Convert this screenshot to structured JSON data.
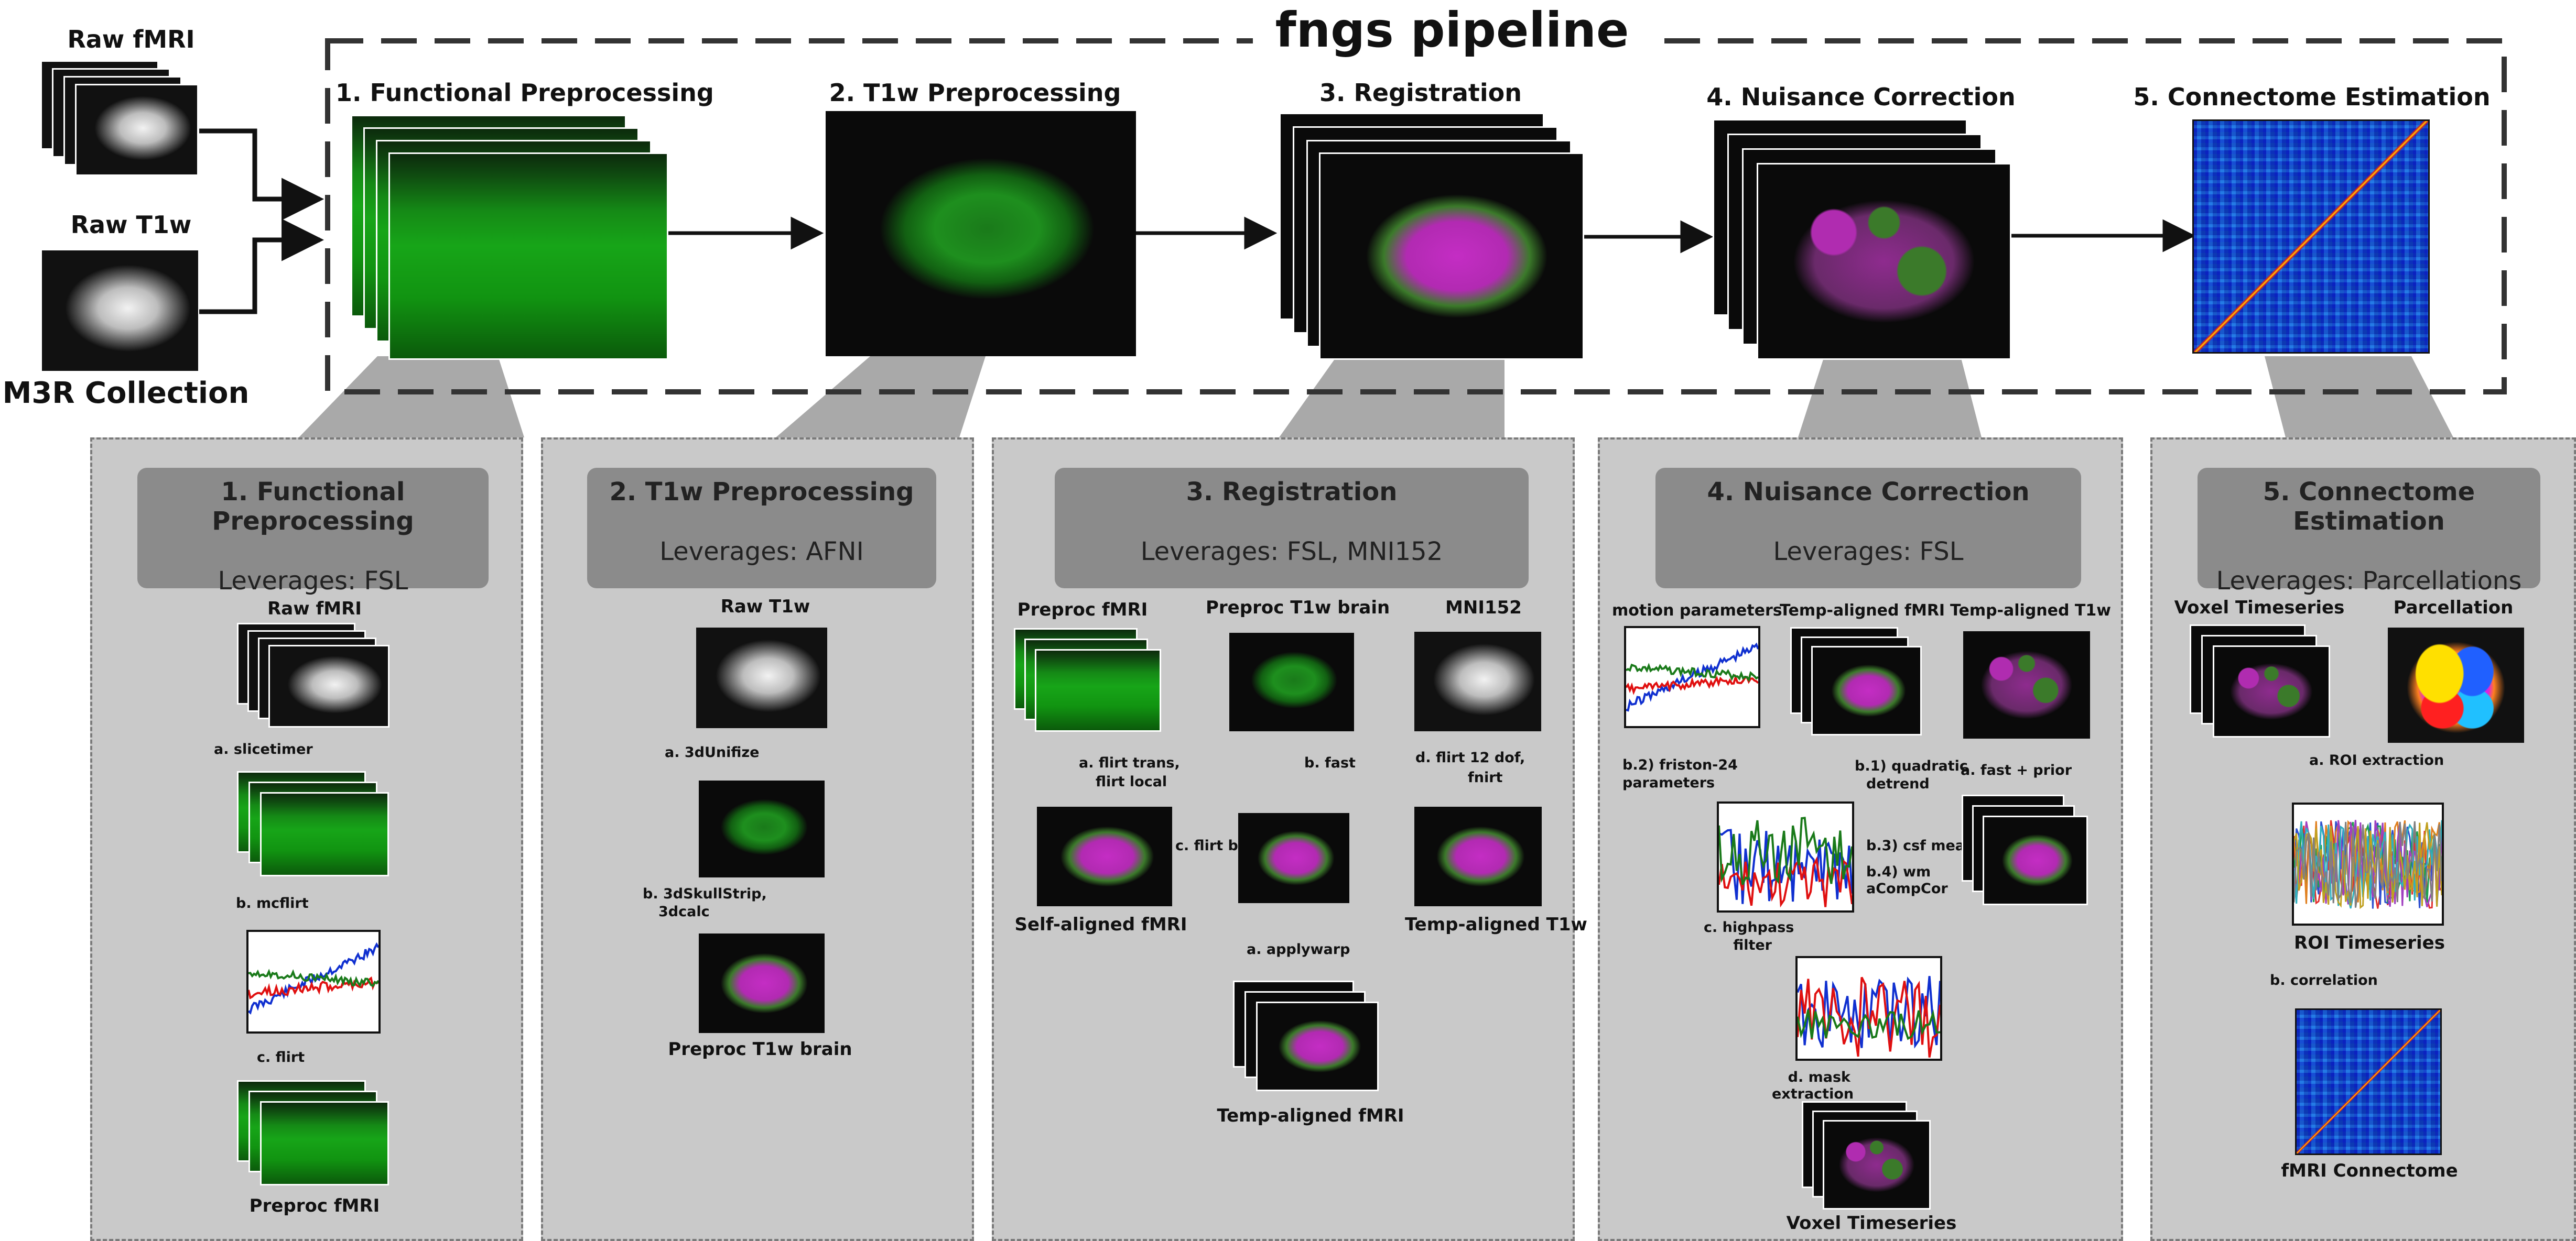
{
  "title": "fngs pipeline",
  "inputs": {
    "raw_fmri": "Raw fMRI",
    "raw_t1w": "Raw T1w",
    "collection": "M3R Collection"
  },
  "top_stages": [
    "1. Functional Preprocessing",
    "2. T1w Preprocessing",
    "3. Registration",
    "4. Nuisance Correction",
    "5. Connectome Estimation"
  ],
  "panels": {
    "p1": {
      "title": "1. Functional Preprocessing",
      "leverages": "Leverages: FSL",
      "raw": "Raw fMRI",
      "out": "Preproc fMRI",
      "steps": [
        "a. slicetimer",
        "b. mcflirt",
        "c. flirt"
      ]
    },
    "p2": {
      "title": "2. T1w Preprocessing",
      "leverages": "Leverages: AFNI",
      "raw": "Raw T1w",
      "out": "Preproc T1w brain",
      "steps": [
        "a. 3dUnifize",
        "b. 3dSkullStrip,",
        "3dcalc"
      ]
    },
    "p3": {
      "title": "3. Registration",
      "leverages": "Leverages: FSL, MNI152",
      "preproc_fmri": "Preproc fMRI",
      "preproc_t1w": "Preproc T1w brain",
      "mni": "MNI152",
      "self_aligned": "Self-aligned fMRI",
      "temp_aligned_t1w": "Temp-aligned T1w",
      "temp_aligned_fmri": "Temp-aligned fMRI",
      "e_flirt1": "a. flirt trans,",
      "e_flirt2": "flirt local",
      "e_fast": "b. fast",
      "e_bbr": "c. flirt bbr",
      "e_fnirt1": "d. flirt 12 dof,",
      "e_fnirt2": "fnirt",
      "e_apply": "a. applywarp"
    },
    "p4": {
      "title": "4. Nuisance Correction",
      "leverages": "Leverages: FSL",
      "motion": "motion parameters",
      "temp_fmri": "Temp-aligned fMRI",
      "temp_t1w": "Temp-aligned T1w",
      "e_fast": "a. fast + prior",
      "e_friston1": "b.2) friston-24",
      "e_friston2": "parameters",
      "e_quad1": "b.1) quadratic",
      "e_quad2": "detrend",
      "e_csf": "b.3) csf mean",
      "e_wm1": "b.4) wm",
      "e_wm2": "aCompCor",
      "e_hp1": "c. highpass",
      "e_hp2": "filter",
      "e_mask1": "d. mask",
      "e_mask2": "extraction",
      "out": "Voxel Timeseries"
    },
    "p5": {
      "title": "5. Connectome Estimation",
      "leverages": "Leverages: Parcellations",
      "voxel": "Voxel Timeseries",
      "parcellation": "Parcellation",
      "e_roi": "a. ROI extraction",
      "roi": "ROI Timeseries",
      "e_corr": "b. correlation",
      "out": "fMRI Connectome"
    }
  },
  "colors": {
    "panel_bg": "#c9c9c9",
    "header_bg": "#8b8b8b",
    "dash": "#333333",
    "series_blue": "#1030d0",
    "series_red": "#e01010",
    "series_green": "#1a7a1a"
  },
  "icons": [
    "mri-stack-icon",
    "brain-slice-icon",
    "connectome-matrix-icon",
    "timeseries-plot-icon",
    "parcellation-icon"
  ]
}
